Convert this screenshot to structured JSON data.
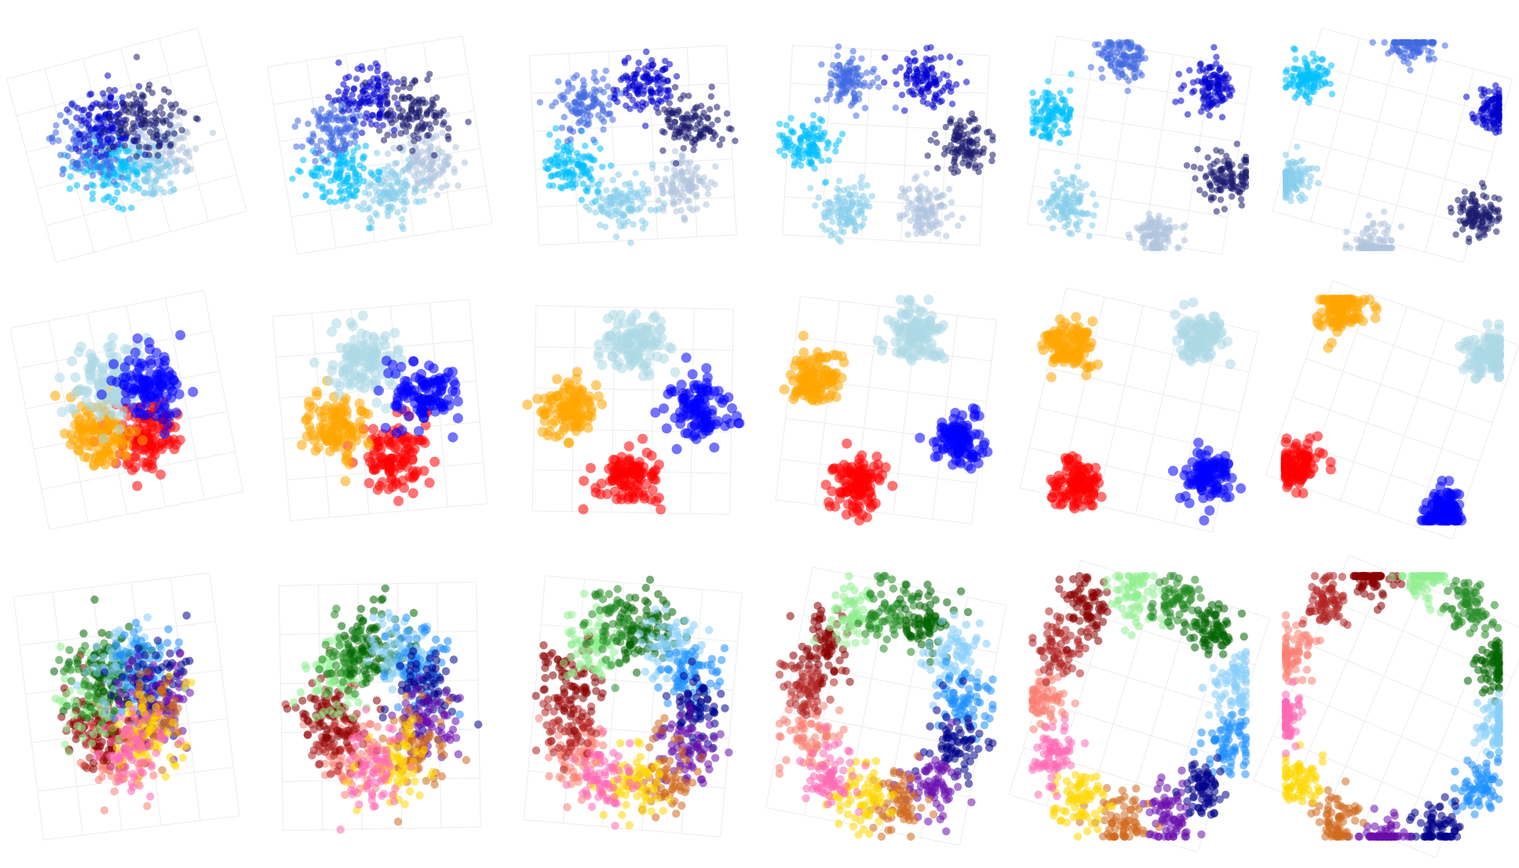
{
  "rows": [
    {
      "colors": [
        "#b0c4de",
        "#87ceeb",
        "#00bfff",
        "#4169e1",
        "#0000cd",
        "#191970"
      ]
    },
    {
      "colors": [
        "#ff0000",
        "#ffa500",
        "#add8e6",
        "#0000ff"
      ]
    },
    {
      "colors": [
        "#fa8072",
        "#b22222",
        "#8b0000",
        "#90ee90",
        "#228b22",
        "#006400",
        "#87cefa",
        "#1e90ff",
        "#00008b",
        "#6a0dad",
        "#d2691e",
        "#ffd700",
        "#ff69b4"
      ]
    }
  ]
}
